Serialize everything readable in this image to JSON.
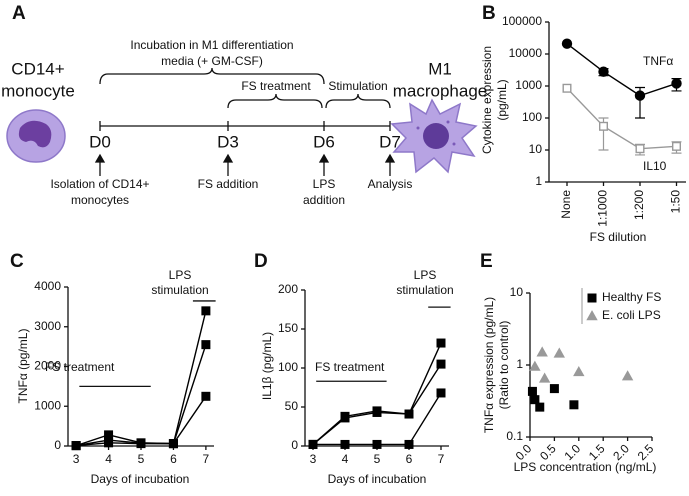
{
  "panel_labels": [
    "A",
    "B",
    "C",
    "D",
    "E"
  ],
  "diagram": {
    "left_cell": [
      "CD14+",
      "monocyte"
    ],
    "right_cell": [
      "M1",
      "macrophage"
    ],
    "days": [
      "D0",
      "D3",
      "D6",
      "D7"
    ],
    "incubation": [
      "Incubation in M1 differentiation",
      "media (+ GM-CSF)"
    ],
    "fs_treatment": "FS treatment",
    "stimulation": "Stimulation",
    "events": [
      [
        "Isolation of CD14+",
        "monocytes"
      ],
      [
        "FS addition"
      ],
      [
        "LPS",
        "addition"
      ],
      [
        "Analysis"
      ]
    ]
  },
  "chart_data": [
    {
      "type": "line",
      "categories": [
        "None",
        "1:1000",
        "1:200",
        "1:50"
      ],
      "x_label": "FS dilution",
      "y_label": [
        "Cytokine expression",
        "(pg/mL)"
      ],
      "log_y": true,
      "ylim": [
        1,
        100000
      ],
      "yticks": [
        1,
        10,
        100,
        1000,
        10000,
        100000
      ],
      "series": [
        {
          "name": "TNFα",
          "color": "#000000",
          "marker": "circle",
          "filled": true,
          "values": [
            21000,
            2800,
            500,
            1200
          ],
          "errors": [
            null,
            700,
            400,
            500
          ]
        },
        {
          "name": "IL10",
          "color": "#999999",
          "marker": "square",
          "filled": false,
          "values": [
            850,
            55,
            11,
            13
          ],
          "errors": [
            null,
            45,
            4,
            5
          ]
        }
      ]
    },
    {
      "type": "line",
      "x_label": "Days of incubation",
      "y_label": "TNFα (pg/mL)",
      "x": [
        3,
        4,
        5,
        6,
        7
      ],
      "xlim": [
        2.75,
        7.25
      ],
      "xticks": [
        3,
        4,
        5,
        6,
        7
      ],
      "ylim": [
        0,
        4000
      ],
      "yticks": [
        0,
        1000,
        2000,
        3000,
        4000
      ],
      "fs_label": "FS treatment",
      "lps_label": [
        "LPS",
        "stimulation"
      ],
      "series": [
        {
          "color": "#000000",
          "marker": "square",
          "filled": true,
          "values": [
            10,
            280,
            80,
            60,
            3400
          ]
        },
        {
          "color": "#000000",
          "marker": "square",
          "filled": true,
          "values": [
            10,
            150,
            70,
            60,
            2550
          ]
        },
        {
          "color": "#000000",
          "marker": "square",
          "filled": true,
          "values": [
            10,
            80,
            60,
            60,
            1250
          ]
        }
      ]
    },
    {
      "type": "line",
      "x_label": "Days of incubation",
      "y_label": "IL1β (pg/mL)",
      "x": [
        3,
        4,
        5,
        6,
        7
      ],
      "xlim": [
        2.75,
        7.25
      ],
      "xticks": [
        3,
        4,
        5,
        6,
        7
      ],
      "ylim": [
        0,
        200
      ],
      "yticks": [
        0,
        50,
        100,
        150,
        200
      ],
      "fs_label": "FS treatment",
      "lps_label": [
        "LPS",
        "stimulation"
      ],
      "series": [
        {
          "color": "#000000",
          "marker": "square",
          "filled": true,
          "values": [
            2,
            38,
            45,
            41,
            132
          ]
        },
        {
          "color": "#000000",
          "marker": "square",
          "filled": true,
          "values": [
            2,
            36,
            43,
            41,
            105
          ]
        },
        {
          "color": "#000000",
          "marker": "square",
          "filled": true,
          "values": [
            2,
            2,
            2,
            2,
            68
          ]
        }
      ]
    },
    {
      "type": "scatter",
      "x_label": "LPS concentration (ng/mL)",
      "y_label": [
        "TNFα expression (pg/mL)",
        "(Ratio to control)"
      ],
      "xlim": [
        0,
        2.5
      ],
      "xticks": [
        {
          "value": 0,
          "label": "0.0"
        },
        0.5,
        {
          "value": 1,
          "label": "1.0"
        },
        1.5,
        {
          "value": 2,
          "label": "2.0"
        },
        2.5
      ],
      "log_y": true,
      "ylim": [
        0.1,
        10
      ],
      "yticks": [
        0.1,
        1,
        10
      ],
      "series": [
        {
          "name": "Healthy FS",
          "color": "#000000",
          "marker": "square",
          "filled": true,
          "x": [
            0.05,
            0.1,
            0.2,
            0.5,
            0.9
          ],
          "values": [
            0.43,
            0.33,
            0.26,
            0.47,
            0.28
          ]
        },
        {
          "name": "E. coli LPS",
          "color": "#999999",
          "marker": "triangle",
          "filled": true,
          "x": [
            0.1,
            0.25,
            0.3,
            0.6,
            1.0,
            2.0
          ],
          "values": [
            0.95,
            1.5,
            0.65,
            1.45,
            0.8,
            0.7
          ]
        }
      ]
    }
  ]
}
